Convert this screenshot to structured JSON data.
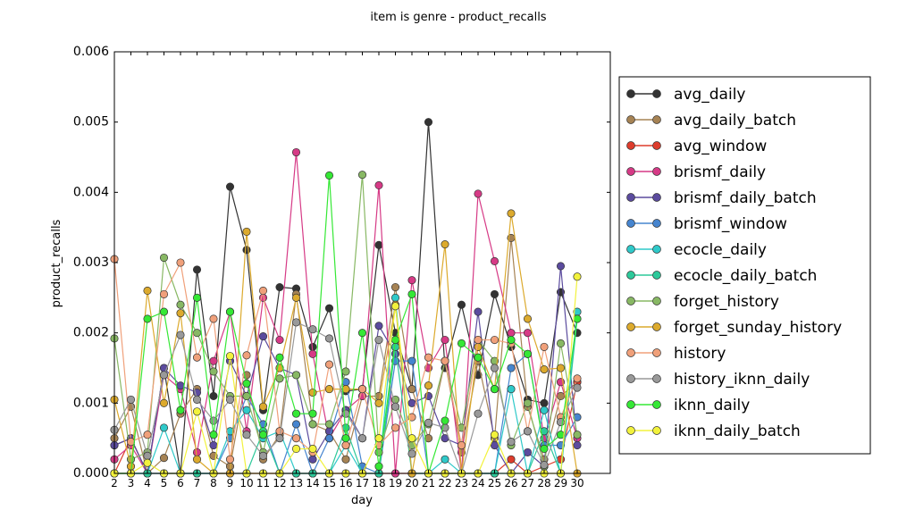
{
  "chart_data": {
    "type": "line",
    "title": "item is genre - product_recalls",
    "xlabel": "day",
    "ylabel": "product_recalls",
    "xlim": [
      2,
      32
    ],
    "ylim": [
      0,
      0.006
    ],
    "x_ticks": [
      2,
      3,
      4,
      5,
      6,
      7,
      8,
      9,
      10,
      11,
      12,
      13,
      14,
      15,
      16,
      17,
      18,
      19,
      20,
      21,
      22,
      23,
      24,
      25,
      26,
      27,
      28,
      29,
      30
    ],
    "y_ticks": [
      0.0,
      0.001,
      0.002,
      0.003,
      0.004,
      0.005,
      0.006
    ],
    "y_tick_labels": [
      "0.000",
      "0.001",
      "0.002",
      "0.003",
      "0.004",
      "0.005",
      "0.006"
    ],
    "grid": false,
    "legend_position": "right-outside",
    "x": [
      2,
      3,
      4,
      5,
      6,
      7,
      8,
      9,
      10,
      11,
      12,
      13,
      14,
      15,
      16,
      17,
      18,
      19,
      20,
      21,
      22,
      23,
      24,
      25,
      26,
      27,
      28,
      29,
      30
    ],
    "series": [
      {
        "name": "avg_daily",
        "color": "#333333",
        "values": [
          0.0004,
          0.0005,
          0.0,
          0.0015,
          0.0,
          0.0029,
          0.0011,
          0.00408,
          0.00318,
          0.0009,
          0.00265,
          0.00263,
          0.0018,
          0.00235,
          0.00117,
          0.0012,
          0.00325,
          0.002,
          0.0012,
          0.005,
          0.0015,
          0.0024,
          0.0014,
          0.00255,
          0.0018,
          0.00105,
          0.001,
          0.00258,
          0.002
        ]
      },
      {
        "name": "avg_daily_batch",
        "color": "#a68354",
        "values": [
          0.0005,
          0.00095,
          0.0,
          0.00022,
          0.00085,
          0.0012,
          0.00025,
          0.0001,
          0.0014,
          0.0002,
          0.00055,
          0.00255,
          0.0007,
          0.0006,
          0.0002,
          0.0011,
          0.0011,
          0.00265,
          0.0012,
          0.0005,
          0.0016,
          0.0003,
          0.0016,
          0.0005,
          0.00335,
          0.00095,
          0.0002,
          0.0011,
          0.0013
        ]
      },
      {
        "name": "avg_window",
        "color": "#dd3c2c",
        "values": [
          0.0,
          0.0005,
          0.0,
          0.0,
          0.0,
          0.0,
          0.0,
          0.0,
          0.0,
          0.0,
          0.0,
          0.0,
          0.0,
          0.0,
          0.0,
          0.0,
          0.0,
          0.0,
          0.0,
          0.0,
          0.0,
          0.0,
          0.0,
          0.0,
          0.0002,
          0.0,
          0.0001,
          0.0002,
          0.0013
        ]
      },
      {
        "name": "brismf_daily",
        "color": "#d63a86",
        "values": [
          0.0002,
          0.0004,
          0.0,
          0.0014,
          0.0012,
          0.0003,
          0.0016,
          0.0023,
          0.0006,
          0.0025,
          0.0019,
          0.00457,
          0.0017,
          0.0005,
          0.0009,
          0.0011,
          0.0041,
          0.0,
          0.00275,
          0.0015,
          0.0019,
          0.0,
          0.00398,
          0.00302,
          0.002,
          0.002,
          0.0005,
          0.0013,
          0.0005
        ]
      },
      {
        "name": "brismf_daily_batch",
        "color": "#5b4b9e",
        "values": [
          0.0004,
          0.0005,
          0.0,
          0.0015,
          0.00125,
          0.00115,
          0.0004,
          0.0016,
          0.0011,
          0.00195,
          0.0015,
          0.0014,
          0.0002,
          0.0006,
          0.0009,
          0.0005,
          0.0021,
          0.0017,
          0.001,
          0.0011,
          0.0005,
          0.0004,
          0.0023,
          0.0004,
          0.0,
          0.0003,
          0.0001,
          0.00295,
          0.0004
        ]
      },
      {
        "name": "brismf_window",
        "color": "#4685cf",
        "values": [
          0.0,
          0.0,
          0.0,
          0.0,
          0.0,
          0.0,
          0.0,
          0.0005,
          0.0011,
          0.0007,
          0.0,
          0.0007,
          0.0,
          0.0005,
          0.0013,
          0.0001,
          0.0,
          0.0016,
          0.0016,
          0.0,
          0.0,
          0.0,
          0.0,
          0.0,
          0.0015,
          0.0017,
          0.0004,
          0.0004,
          0.0008
        ]
      },
      {
        "name": "ecocle_daily",
        "color": "#2fc9c9",
        "values": [
          0.0,
          0.0,
          0.0,
          0.00065,
          0.0,
          0.0,
          0.0,
          0.0006,
          0.0009,
          0.0005,
          0.0006,
          0.0,
          0.0,
          0.0,
          0.0004,
          0.0,
          0.0,
          0.0025,
          0.0,
          0.0,
          0.0002,
          0.0,
          0.0,
          0.0,
          0.0012,
          0.0,
          0.0009,
          0.0,
          0.0023
        ]
      },
      {
        "name": "ecocle_daily_batch",
        "color": "#2dc99a",
        "values": [
          0.0,
          0.0,
          0.0,
          0.0,
          0.0,
          0.0,
          0.0,
          0.0,
          0.0,
          0.0006,
          0.0,
          0.0,
          0.0,
          0.0,
          0.00065,
          0.0,
          0.0,
          0.0018,
          0.0,
          0.0,
          0.0,
          0.0,
          0.0,
          0.0,
          0.0,
          0.0,
          0.0006,
          0.0,
          0.0022
        ]
      },
      {
        "name": "forget_history",
        "color": "#88b864",
        "values": [
          0.00192,
          0.0002,
          0.0003,
          0.00307,
          0.0024,
          0.002,
          0.00145,
          0.0011,
          0.0011,
          0.0003,
          0.00135,
          0.0014,
          0.0007,
          0.0007,
          0.00145,
          0.00425,
          0.0003,
          0.00105,
          0.0004,
          0.0007,
          0.0016,
          0.00065,
          0.0019,
          0.0016,
          0.0004,
          0.001,
          0.0001,
          0.00185,
          0.00055
        ]
      },
      {
        "name": "forget_sunday_history",
        "color": "#dcaa2d",
        "values": [
          0.00105,
          0.0001,
          0.0026,
          0.001,
          0.00228,
          0.0002,
          0.0,
          0.0,
          0.00344,
          0.00095,
          0.0015,
          0.0025,
          0.00115,
          0.0012,
          0.0012,
          0.0012,
          0.001,
          0.0024,
          0.0,
          0.00125,
          0.00326,
          0.0,
          0.0018,
          0.0012,
          0.0037,
          0.0022,
          0.00148,
          0.0015,
          0.0
        ]
      },
      {
        "name": "history",
        "color": "#f0a07a",
        "values": [
          0.00305,
          0.00045,
          0.00055,
          0.00255,
          0.003,
          0.00165,
          0.0022,
          0.0002,
          0.00168,
          0.0026,
          0.0006,
          0.0005,
          0.0003,
          0.00155,
          0.0004,
          0.0012,
          0.0004,
          0.00065,
          0.0008,
          0.00165,
          0.0016,
          0.0004,
          0.0019,
          0.0019,
          0.00185,
          0.0006,
          0.0018,
          0.0008,
          0.00135
        ]
      },
      {
        "name": "history_iknn_daily",
        "color": "#999999",
        "values": [
          0.00062,
          0.00105,
          0.00025,
          0.0014,
          0.00197,
          0.00105,
          0.00075,
          0.00105,
          0.00055,
          0.00025,
          0.0005,
          0.00215,
          0.00205,
          0.00192,
          0.00085,
          0.0005,
          0.0019,
          0.00095,
          0.00028,
          0.00072,
          0.00065,
          0.0,
          0.00085,
          0.0015,
          0.00045,
          0.0006,
          0.00012,
          0.00073,
          0.00122
        ]
      },
      {
        "name": "iknn_daily",
        "color": "#35e835",
        "values": [
          0.0,
          0.0,
          0.0022,
          0.0023,
          0.0009,
          0.0025,
          0.00055,
          0.0023,
          0.00128,
          0.00055,
          0.00165,
          0.00085,
          0.00085,
          0.00424,
          0.0005,
          0.002,
          0.0001,
          0.0019,
          0.00255,
          0.0,
          0.00075,
          0.00185,
          0.00165,
          0.0012,
          0.0019,
          0.0017,
          0.00035,
          0.00055,
          0.0022
        ]
      },
      {
        "name": "iknn_daily_batch",
        "color": "#f2f23c",
        "values": [
          0.0,
          0.0,
          0.00015,
          0.0,
          0.0,
          0.00088,
          0.0,
          0.00167,
          0.0,
          0.0,
          0.0,
          0.00035,
          0.00035,
          0.0,
          0.0,
          0.0,
          0.0005,
          0.00238,
          0.0005,
          0.0,
          0.0,
          0.0,
          0.0,
          0.00055,
          0.0,
          0.0,
          0.0,
          0.0,
          0.0028
        ]
      }
    ]
  }
}
